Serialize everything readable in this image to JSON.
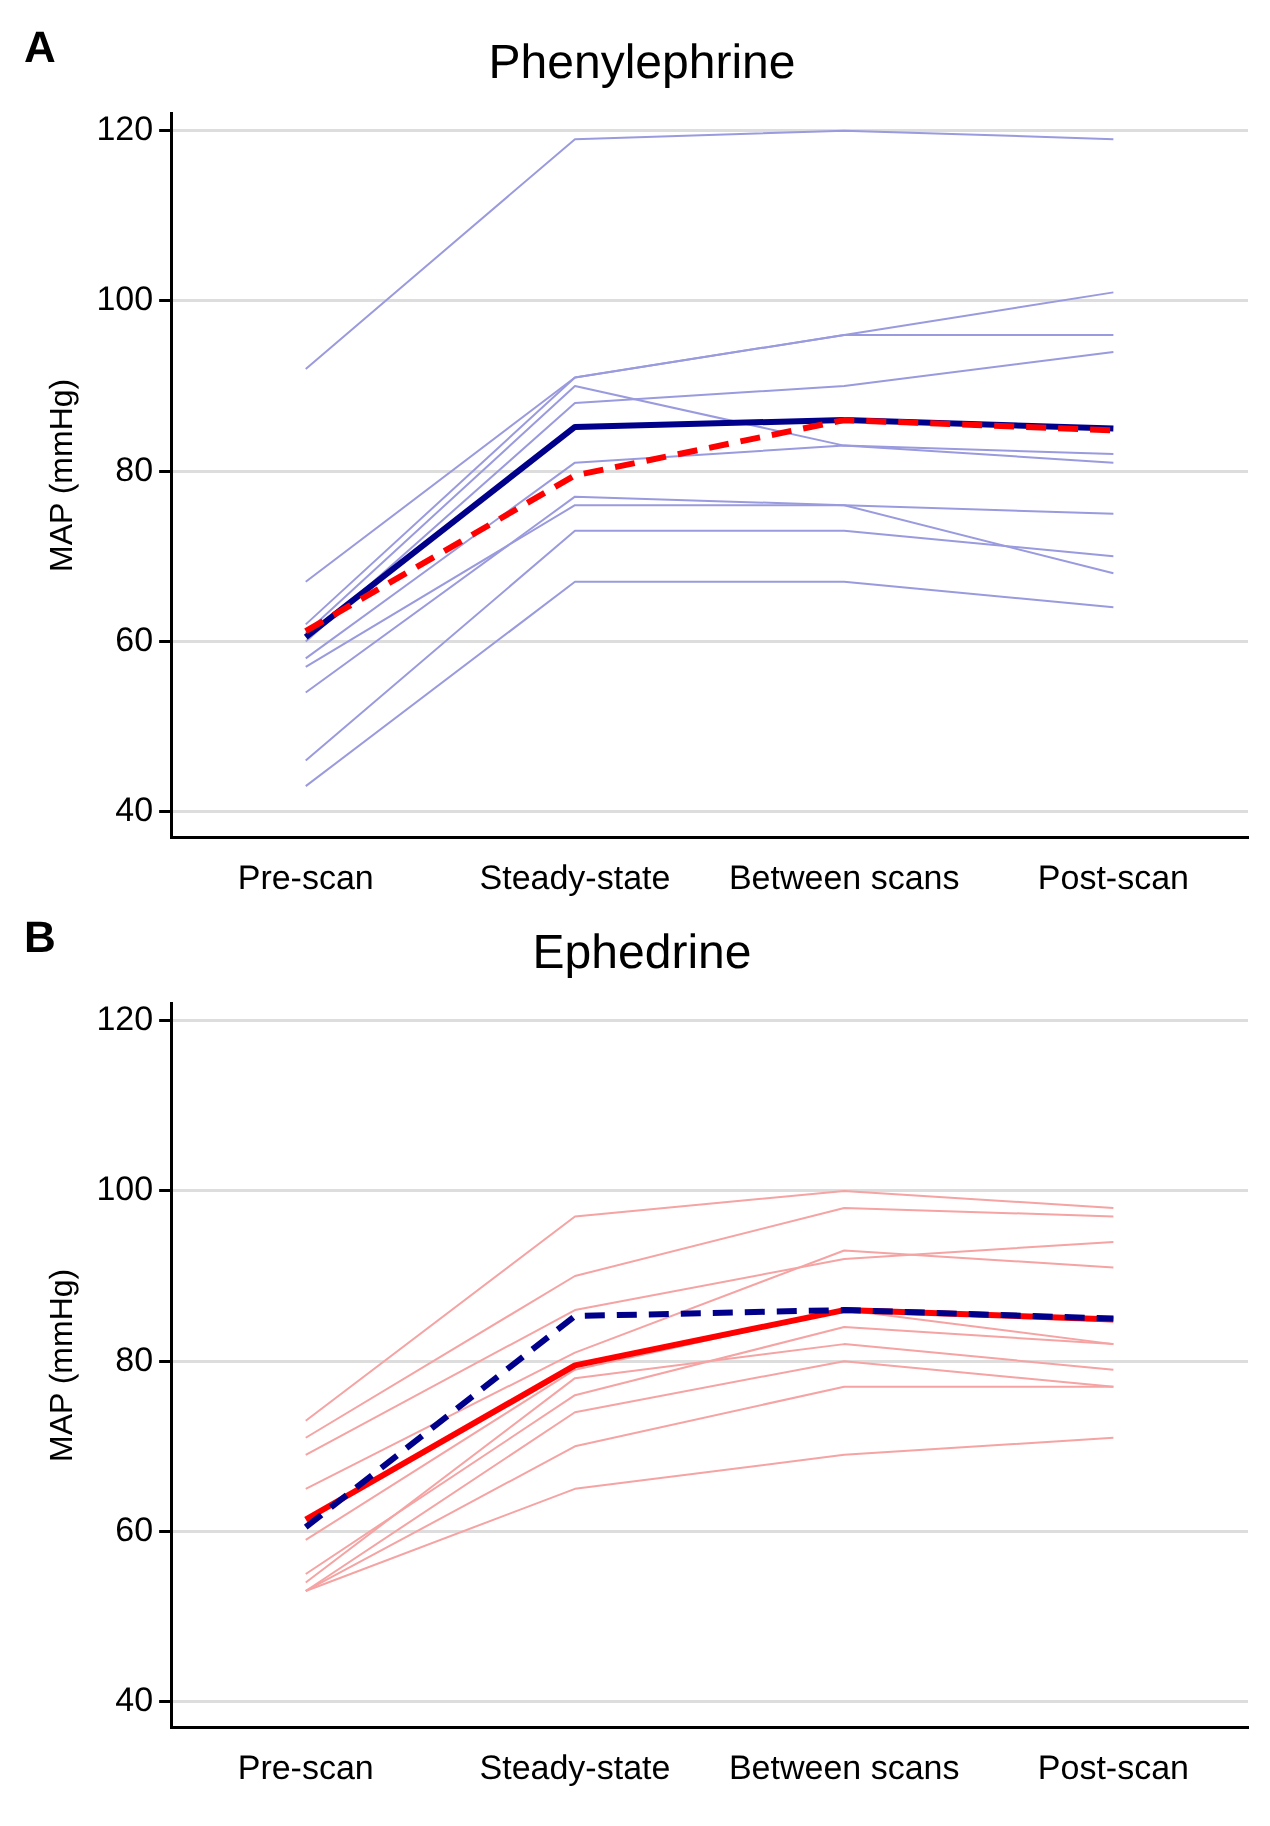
{
  "chart_data": [
    {
      "type": "line",
      "title": "Phenylephrine",
      "ylabel": "MAP (mmHg)",
      "annotations": [
        "A"
      ],
      "categories": [
        "Pre-scan",
        "Steady-state",
        "Between scans",
        "Post-scan"
      ],
      "ylim": [
        37,
        122
      ],
      "yticks": [
        40,
        60,
        80,
        100,
        120
      ],
      "grid": "y",
      "legend": false,
      "marker": "none",
      "series": [
        {
          "color": "#9a9ade",
          "values": [
            92,
            119,
            120,
            119
          ]
        },
        {
          "color": "#9a9ade",
          "values": [
            67,
            91,
            96,
            101
          ]
        },
        {
          "color": "#9a9ade",
          "values": [
            62,
            91,
            96,
            96
          ]
        },
        {
          "color": "#9a9ade",
          "values": [
            61,
            90,
            83,
            81
          ]
        },
        {
          "color": "#9a9ade",
          "values": [
            60,
            88,
            90,
            94
          ]
        },
        {
          "color": "#9a9ade",
          "values": [
            58,
            81,
            83,
            82
          ]
        },
        {
          "color": "#9a9ade",
          "values": [
            54,
            77,
            76,
            68
          ]
        },
        {
          "color": "#9a9ade",
          "values": [
            57,
            76,
            76,
            75
          ]
        },
        {
          "color": "#9a9ade",
          "values": [
            46,
            73,
            73,
            70
          ]
        },
        {
          "color": "#9a9ade",
          "values": [
            43,
            67,
            67,
            64
          ]
        },
        {
          "color": "#ff0000",
          "line_style": "dashed",
          "values": [
            61.2,
            79.5,
            86,
            84.8
          ]
        },
        {
          "color": "#00008b",
          "line_style": "solid",
          "values": [
            60.5,
            85.2,
            86,
            85
          ]
        }
      ]
    },
    {
      "type": "line",
      "title": "Ephedrine",
      "ylabel": "MAP (mmHg)",
      "annotations": [
        "B"
      ],
      "categories": [
        "Pre-scan",
        "Steady-state",
        "Between scans",
        "Post-scan"
      ],
      "ylim": [
        37,
        122
      ],
      "yticks": [
        40,
        60,
        80,
        100,
        120
      ],
      "grid": "y",
      "legend": false,
      "marker": "none",
      "series": [
        {
          "color": "#f5a3a3",
          "values": [
            73,
            97,
            100,
            98
          ]
        },
        {
          "color": "#f5a3a3",
          "values": [
            71,
            90,
            98,
            97
          ]
        },
        {
          "color": "#f5a3a3",
          "values": [
            69,
            86,
            92,
            94
          ]
        },
        {
          "color": "#f5a3a3",
          "values": [
            65,
            81,
            93,
            91
          ]
        },
        {
          "color": "#f5a3a3",
          "values": [
            59,
            79,
            86,
            82
          ]
        },
        {
          "color": "#f5a3a3",
          "values": [
            55,
            76,
            84,
            82
          ]
        },
        {
          "color": "#f5a3a3",
          "values": [
            54,
            78,
            82,
            79
          ]
        },
        {
          "color": "#f5a3a3",
          "values": [
            53,
            74,
            80,
            77
          ]
        },
        {
          "color": "#f5a3a3",
          "values": [
            53,
            70,
            77,
            77
          ]
        },
        {
          "color": "#f5a3a3",
          "values": [
            53,
            65,
            69,
            71
          ]
        },
        {
          "color": "#00008b",
          "line_style": "dashed",
          "values": [
            60.5,
            85.3,
            86,
            85
          ]
        },
        {
          "color": "#ff0000",
          "line_style": "solid",
          "values": [
            61.4,
            79.5,
            86,
            84.9
          ]
        }
      ]
    }
  ]
}
